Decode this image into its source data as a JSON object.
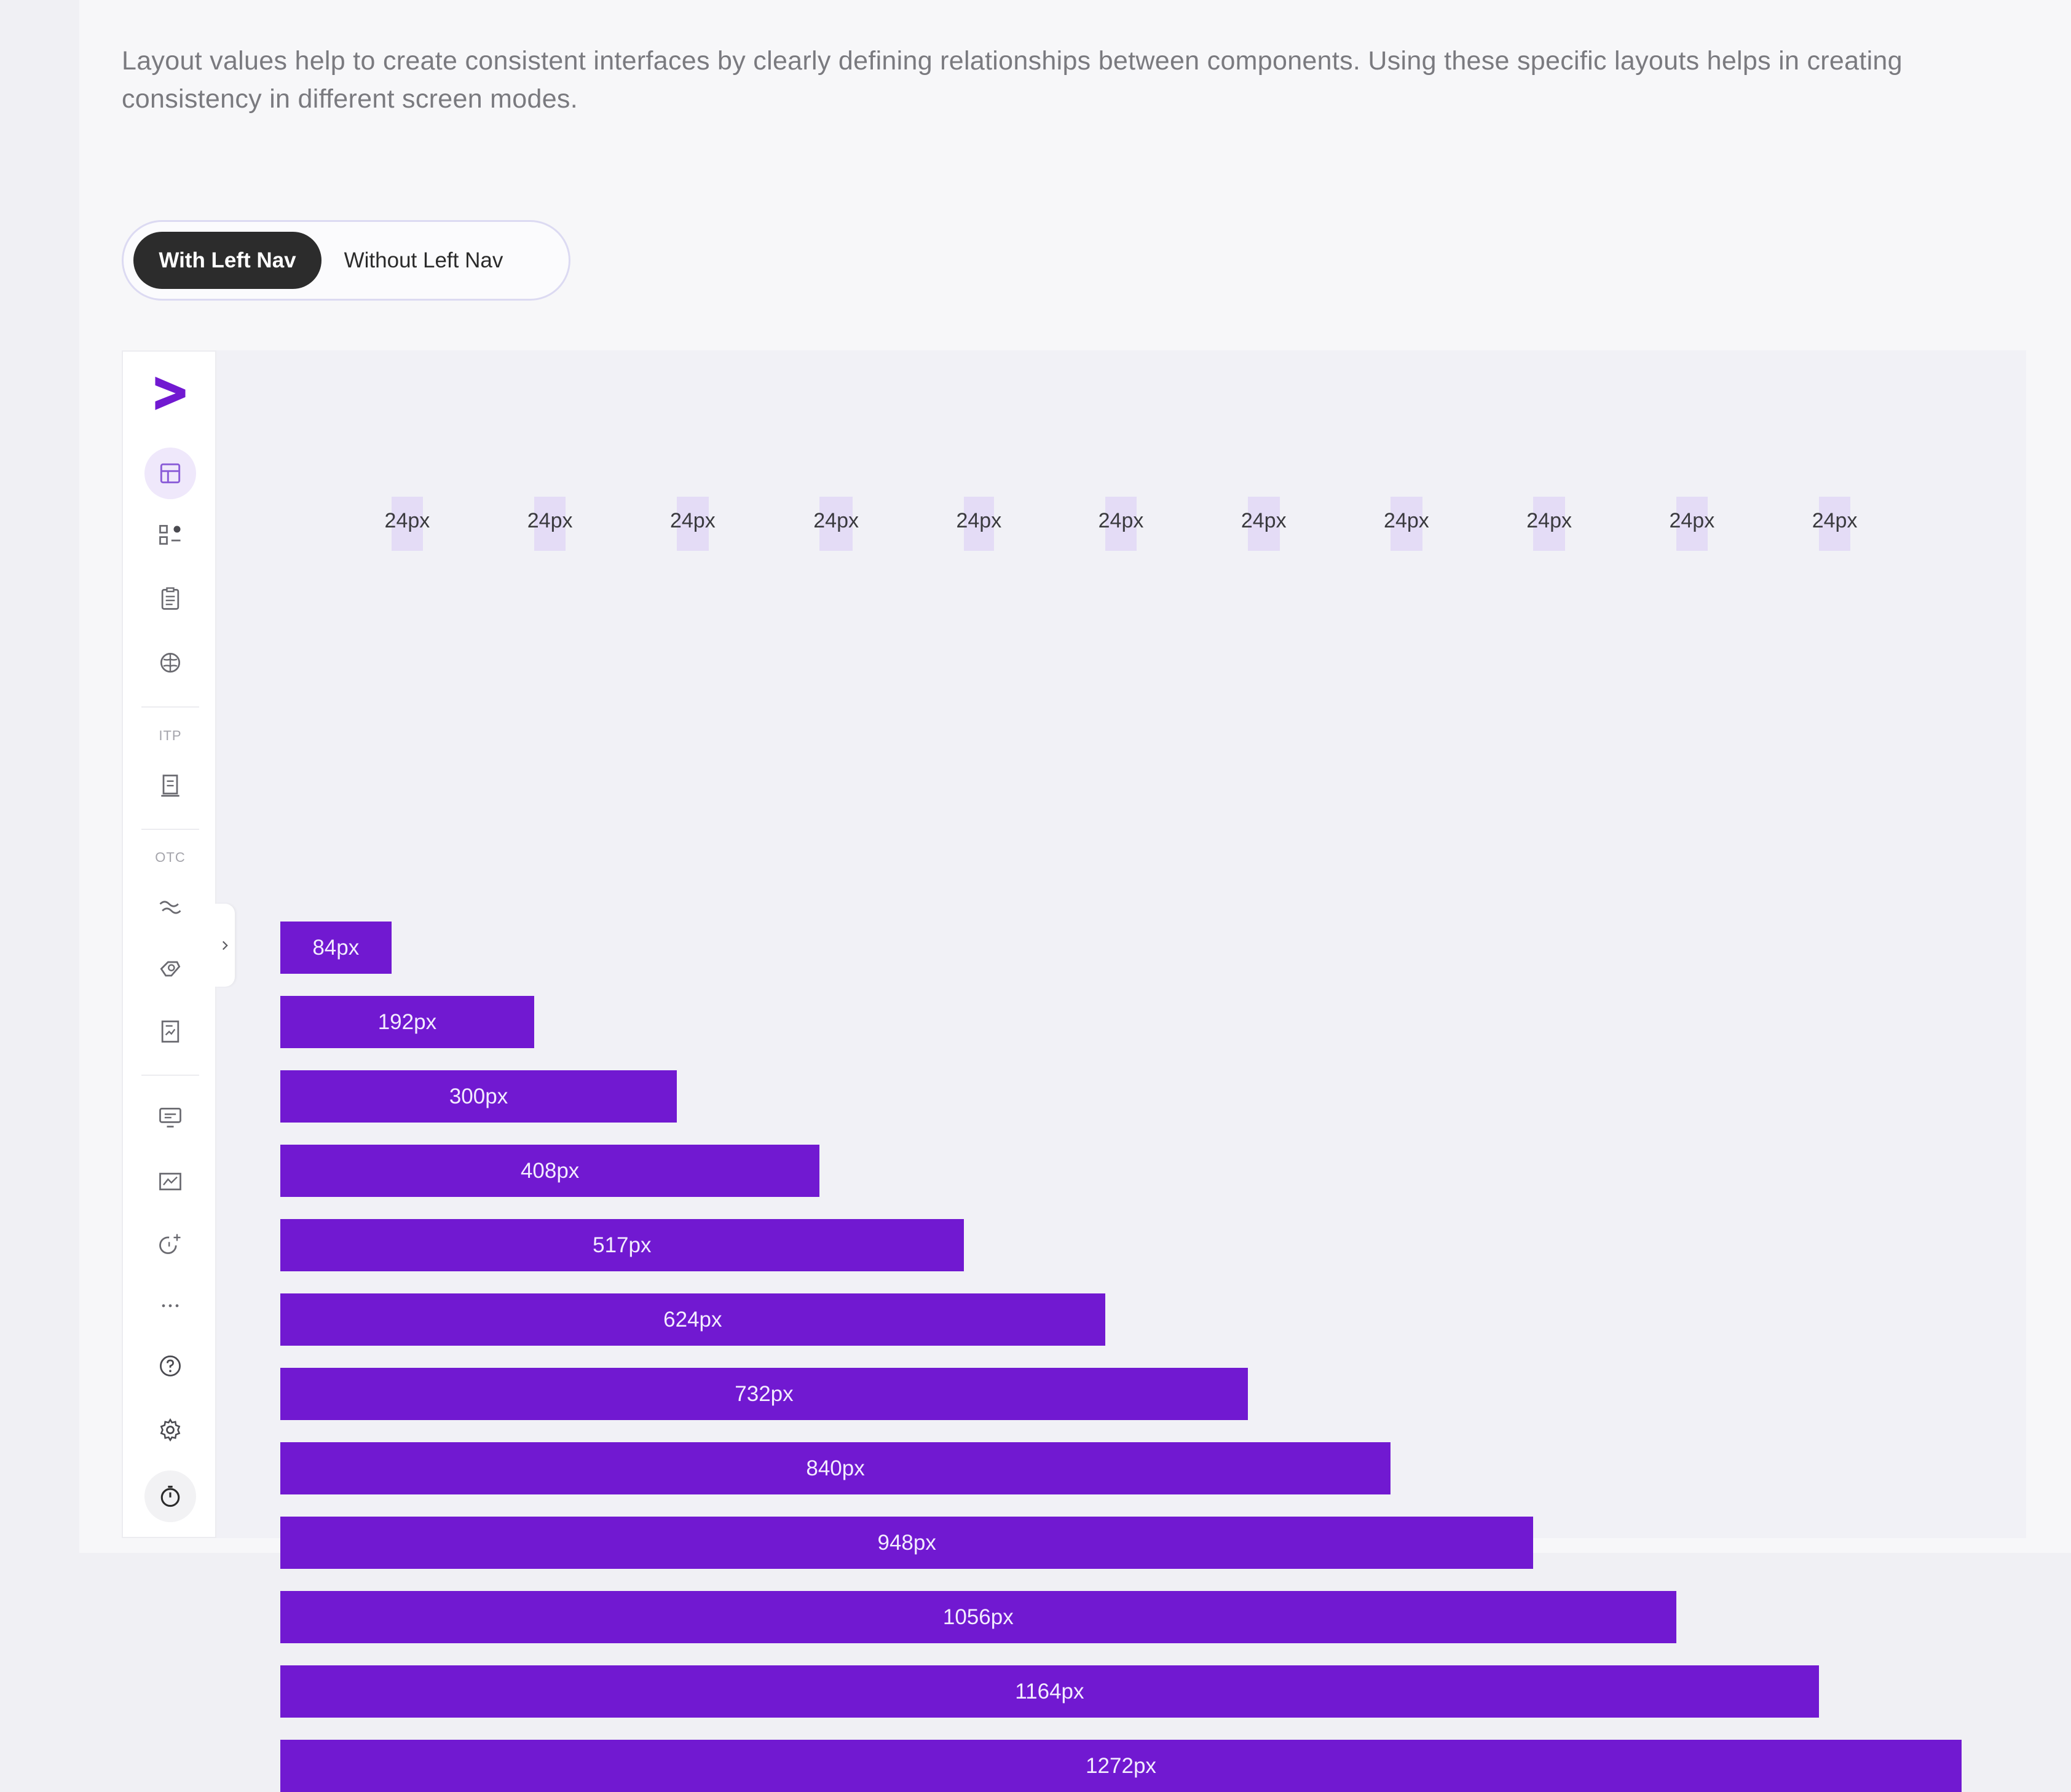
{
  "description": "Layout values help to create consistent interfaces by clearly defining relationships between components. Using these specific layouts helps in creating consistency in different screen modes.",
  "view_toggle": {
    "options": [
      "With Left Nav",
      "Without Left Nav"
    ],
    "selected": "With Left Nav"
  },
  "left_nav": {
    "logo": "greater-than-logo",
    "group_labels": [
      "ITP",
      "OTC"
    ],
    "icons": [
      "layout-icon",
      "apps-icon",
      "clipboard-icon",
      "brain-icon",
      "document-icon",
      "handshake-icon",
      "hand-coins-icon",
      "report-icon",
      "monitor-icon",
      "chart-icon",
      "clock-add-icon",
      "more-icon",
      "help-icon",
      "settings-icon",
      "timer-icon"
    ],
    "collapse_icon": "chevron-right-icon"
  },
  "chart_data": {
    "type": "bar",
    "orientation": "horizontal",
    "gutter_labels": [
      "24px",
      "24px",
      "24px",
      "24px",
      "24px",
      "24px",
      "24px",
      "24px",
      "24px",
      "24px",
      "24px"
    ],
    "categories": [
      "84px",
      "192px",
      "300px",
      "408px",
      "517px",
      "624px",
      "732px",
      "840px",
      "948px",
      "1056px",
      "1164px",
      "1272px"
    ],
    "values": [
      84,
      192,
      300,
      408,
      517,
      624,
      732,
      840,
      948,
      1056,
      1164,
      1272
    ],
    "xlim": [
      0,
      1272
    ],
    "colors": {
      "bar": "#7119d1",
      "gutter": "#e4dcf6"
    }
  },
  "colors": {
    "accent": "#7119d1",
    "toggle_active_bg": "#2c2c2c",
    "nav_active_bg": "#efe8fb"
  }
}
